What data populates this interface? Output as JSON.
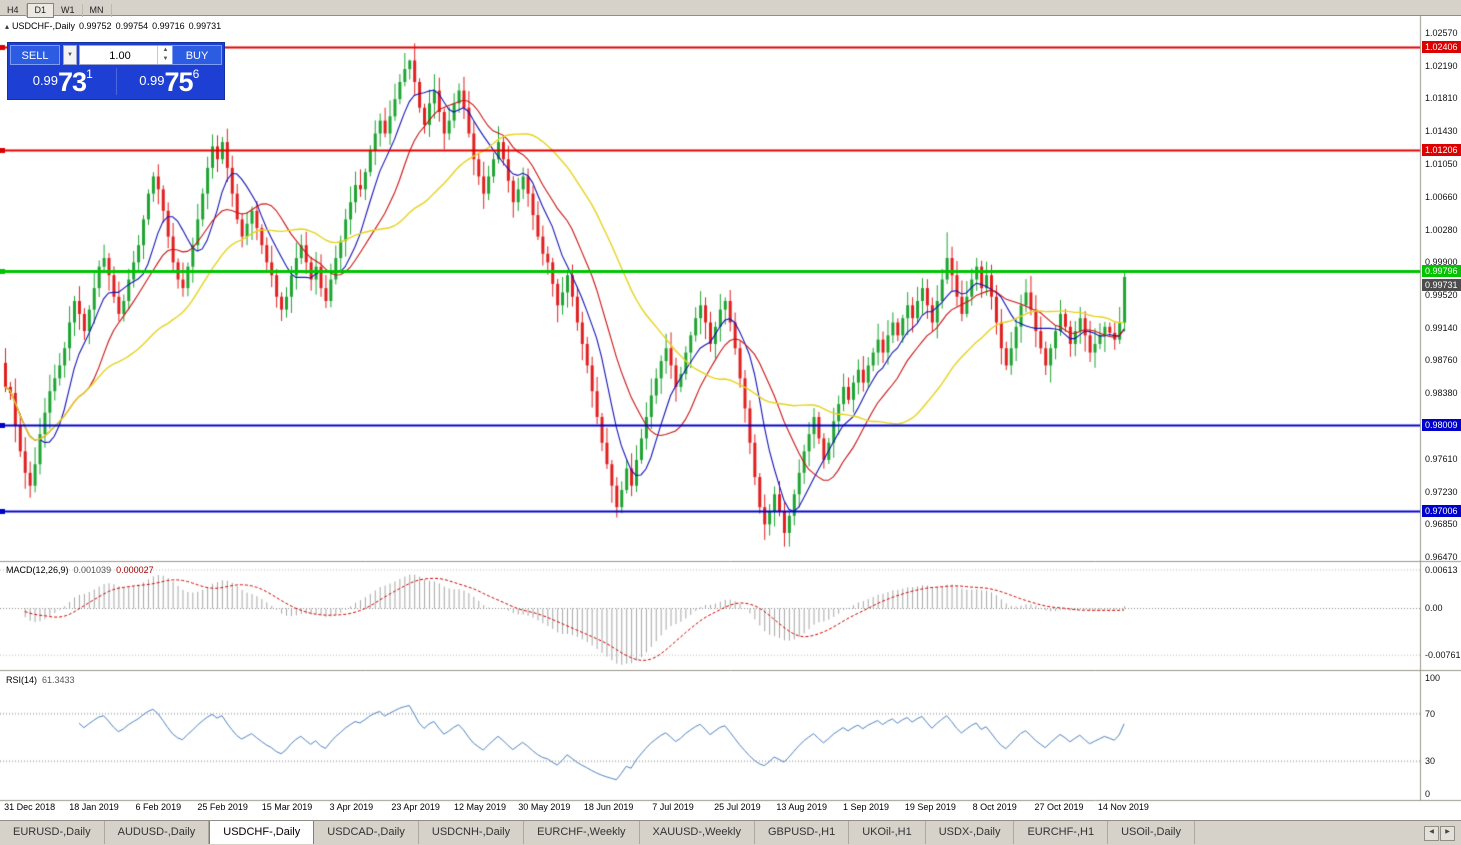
{
  "toolbar": {
    "timeframes": [
      "H4",
      "D1",
      "W1",
      "MN"
    ]
  },
  "title": {
    "caret": "▴",
    "symbol": "USDCHF-,Daily",
    "o": "0.99752",
    "h": "0.99754",
    "l": "0.99716",
    "c": "0.99731"
  },
  "trade_panel": {
    "sell_label": "SELL",
    "buy_label": "BUY",
    "volume": "1.00",
    "dropdown_caret": "▼",
    "spin_up": "▲",
    "spin_down": "▼",
    "sell_price": {
      "base": "0.99",
      "big": "73",
      "sup": "1"
    },
    "buy_price": {
      "base": "0.99",
      "big": "75",
      "sup": "6"
    }
  },
  "price_axis": {
    "ticks": [
      "1.02570",
      "1.02190",
      "1.01810",
      "1.01430",
      "1.01050",
      "1.00660",
      "1.00280",
      "0.99900",
      "0.99520",
      "0.99140",
      "0.98760",
      "0.98380",
      "0.97610",
      "0.97230",
      "0.96850",
      "0.96470"
    ]
  },
  "lines": [
    {
      "price": 1.02406,
      "label": "1.02406",
      "color": "#dd0000",
      "width": 2
    },
    {
      "price": 1.01206,
      "label": "1.01206",
      "color": "#dd0000",
      "width": 2
    },
    {
      "price": 0.99796,
      "label": "0.99796",
      "color": "#00c400",
      "width": 3
    },
    {
      "price": 0.98009,
      "label": "0.98009",
      "color": "#0000cc",
      "width": 2
    },
    {
      "price": 0.97006,
      "label": "0.97006",
      "color": "#0000cc",
      "width": 2
    }
  ],
  "bid": {
    "label": "0.99731",
    "price": 0.99731,
    "color": "#4d4d4d"
  },
  "macd": {
    "name": "MACD(12,26,9)",
    "value_main": "0.001039",
    "value_signal": "0.000027",
    "axis": [
      {
        "v": 0.00613,
        "label": "0.00613"
      },
      {
        "v": 0,
        "label": "0.00"
      },
      {
        "v": -0.00761,
        "label": "-0.00761"
      }
    ],
    "levels": [
      0.00613,
      -0.00761
    ]
  },
  "rsi": {
    "name": "RSI(14)",
    "value": "61.3433",
    "axis": [
      {
        "v": 100,
        "label": "100"
      },
      {
        "v": 70,
        "label": "70"
      },
      {
        "v": 30,
        "label": "30"
      },
      {
        "v": 0,
        "label": "0"
      }
    ],
    "levels": [
      70,
      30
    ]
  },
  "dates": [
    "31 Dec 2018",
    "18 Jan 2019",
    "6 Feb 2019",
    "25 Feb 2019",
    "15 Mar 2019",
    "3 Apr 2019",
    "23 Apr 2019",
    "12 May 2019",
    "30 May 2019",
    "18 Jun 2019",
    "7 Jul 2019",
    "25 Jul 2019",
    "13 Aug 2019",
    "1 Sep 2019",
    "19 Sep 2019",
    "8 Oct 2019",
    "27 Oct 2019",
    "14 Nov 2019"
  ],
  "tabs": [
    {
      "label": "EURUSD-,Daily",
      "active": false
    },
    {
      "label": "AUDUSD-,Daily",
      "active": false
    },
    {
      "label": "USDCHF-,Daily",
      "active": true
    },
    {
      "label": "USDCAD-,Daily",
      "active": false
    },
    {
      "label": "USDCNH-,Daily",
      "active": false
    },
    {
      "label": "EURCHF-,Weekly",
      "active": false
    },
    {
      "label": "XAUUSD-,Weekly",
      "active": false
    },
    {
      "label": "GBPUSD-,H1",
      "active": false
    },
    {
      "label": "UKOil-,H1",
      "active": false
    },
    {
      "label": "USDX-,Daily",
      "active": false
    },
    {
      "label": "EURCHF-,H1",
      "active": false
    },
    {
      "label": "USOil-,Daily",
      "active": false
    }
  ],
  "tab_scroll": {
    "left": "◀",
    "right": "▶"
  },
  "chart_data": {
    "type": "candlestick",
    "symbol": "USDCHF",
    "timeframe": "Daily",
    "x_range": [
      "31 Dec 2018",
      "22 Nov 2019"
    ],
    "y_range": [
      0.9644,
      1.0277
    ],
    "closes": [
      0.9845,
      0.9838,
      0.98,
      0.977,
      0.9745,
      0.973,
      0.9755,
      0.979,
      0.9815,
      0.984,
      0.9855,
      0.987,
      0.989,
      0.992,
      0.9945,
      0.993,
      0.991,
      0.9935,
      0.996,
      0.9985,
      0.9995,
      0.9975,
      0.995,
      0.993,
      0.9945,
      0.997,
      0.999,
      1.001,
      1.004,
      1.007,
      1.009,
      1.0075,
      1.005,
      1.002,
      0.999,
      0.997,
      0.996,
      0.9985,
      1.001,
      1.004,
      1.007,
      1.01,
      1.0125,
      1.011,
      1.013,
      1.01,
      1.007,
      1.004,
      1.002,
      1.0035,
      1.005,
      1.003,
      1.001,
      0.999,
      0.9975,
      0.995,
      0.9935,
      0.995,
      0.9975,
      0.9995,
      1.001,
      0.999,
      0.997,
      0.9985,
      0.996,
      0.9945,
      0.997,
      0.9995,
      1.0015,
      1.004,
      1.006,
      1.008,
      1.0075,
      1.0095,
      1.012,
      1.014,
      1.0155,
      1.014,
      1.016,
      1.018,
      1.02,
      1.0215,
      1.0225,
      1.02,
      1.017,
      1.015,
      1.0175,
      1.019,
      1.0165,
      1.014,
      1.0155,
      1.0175,
      1.019,
      1.017,
      1.014,
      1.011,
      1.009,
      1.007,
      1.009,
      1.011,
      1.013,
      1.011,
      1.0085,
      1.006,
      1.0075,
      1.009,
      1.007,
      1.0045,
      1.002,
      1.0,
      0.999,
      0.9965,
      0.994,
      0.9955,
      0.9975,
      0.995,
      0.992,
      0.9895,
      0.987,
      0.984,
      0.981,
      0.978,
      0.9755,
      0.973,
      0.9705,
      0.9725,
      0.975,
      0.973,
      0.976,
      0.9785,
      0.981,
      0.9835,
      0.9855,
      0.9875,
      0.989,
      0.987,
      0.9845,
      0.986,
      0.9885,
      0.9905,
      0.9925,
      0.994,
      0.992,
      0.9895,
      0.9915,
      0.9935,
      0.9945,
      0.992,
      0.989,
      0.9855,
      0.982,
      0.978,
      0.974,
      0.9705,
      0.9685,
      0.97,
      0.972,
      0.97,
      0.9675,
      0.9695,
      0.972,
      0.9745,
      0.977,
      0.979,
      0.981,
      0.9785,
      0.976,
      0.978,
      0.9805,
      0.9825,
      0.9845,
      0.983,
      0.985,
      0.9865,
      0.985,
      0.987,
      0.9885,
      0.99,
      0.9885,
      0.9905,
      0.992,
      0.9905,
      0.9925,
      0.994,
      0.9925,
      0.9945,
      0.996,
      0.994,
      0.992,
      0.9945,
      0.997,
      0.9995,
      0.9975,
      0.995,
      0.993,
      0.995,
      0.997,
      0.9985,
      0.996,
      0.9975,
      0.995,
      0.992,
      0.989,
      0.987,
      0.989,
      0.9915,
      0.994,
      0.9955,
      0.9935,
      0.991,
      0.989,
      0.987,
      0.989,
      0.991,
      0.993,
      0.9915,
      0.9895,
      0.991,
      0.9925,
      0.9905,
      0.9885,
      0.9895,
      0.9905,
      0.9915,
      0.9908,
      0.99,
      0.992,
      0.9973
    ],
    "wick_overrides": {
      "5": {
        "low": 0.9716
      },
      "30": {
        "high": 1.0095
      },
      "42": {
        "high": 1.0139
      },
      "44": {
        "high": 1.0136
      },
      "82": {
        "high": 1.0226
      },
      "124": {
        "low": 0.9693
      },
      "158": {
        "low": 0.9659
      },
      "191": {
        "high": 1.0025
      },
      "227": {
        "high": 0.9979
      }
    },
    "overlays": [
      {
        "type": "sma",
        "period": 8,
        "color": "#1414b4",
        "width": 1.1
      },
      {
        "type": "sma",
        "period": 16,
        "color": "#c81414",
        "width": 1.1
      },
      {
        "type": "sma",
        "period": 34,
        "color": "#e6d21e",
        "width": 1.4
      }
    ],
    "indicators": [
      {
        "type": "MACD",
        "params": [
          12,
          26,
          9
        ]
      },
      {
        "type": "RSI",
        "params": [
          14
        ]
      }
    ],
    "colors": {
      "up": "#1ea432",
      "down": "#e01f1f",
      "macd_hist": "#a6a6a6",
      "macd_signal": "#cc0000",
      "rsi_line": "#4f81bd"
    }
  }
}
